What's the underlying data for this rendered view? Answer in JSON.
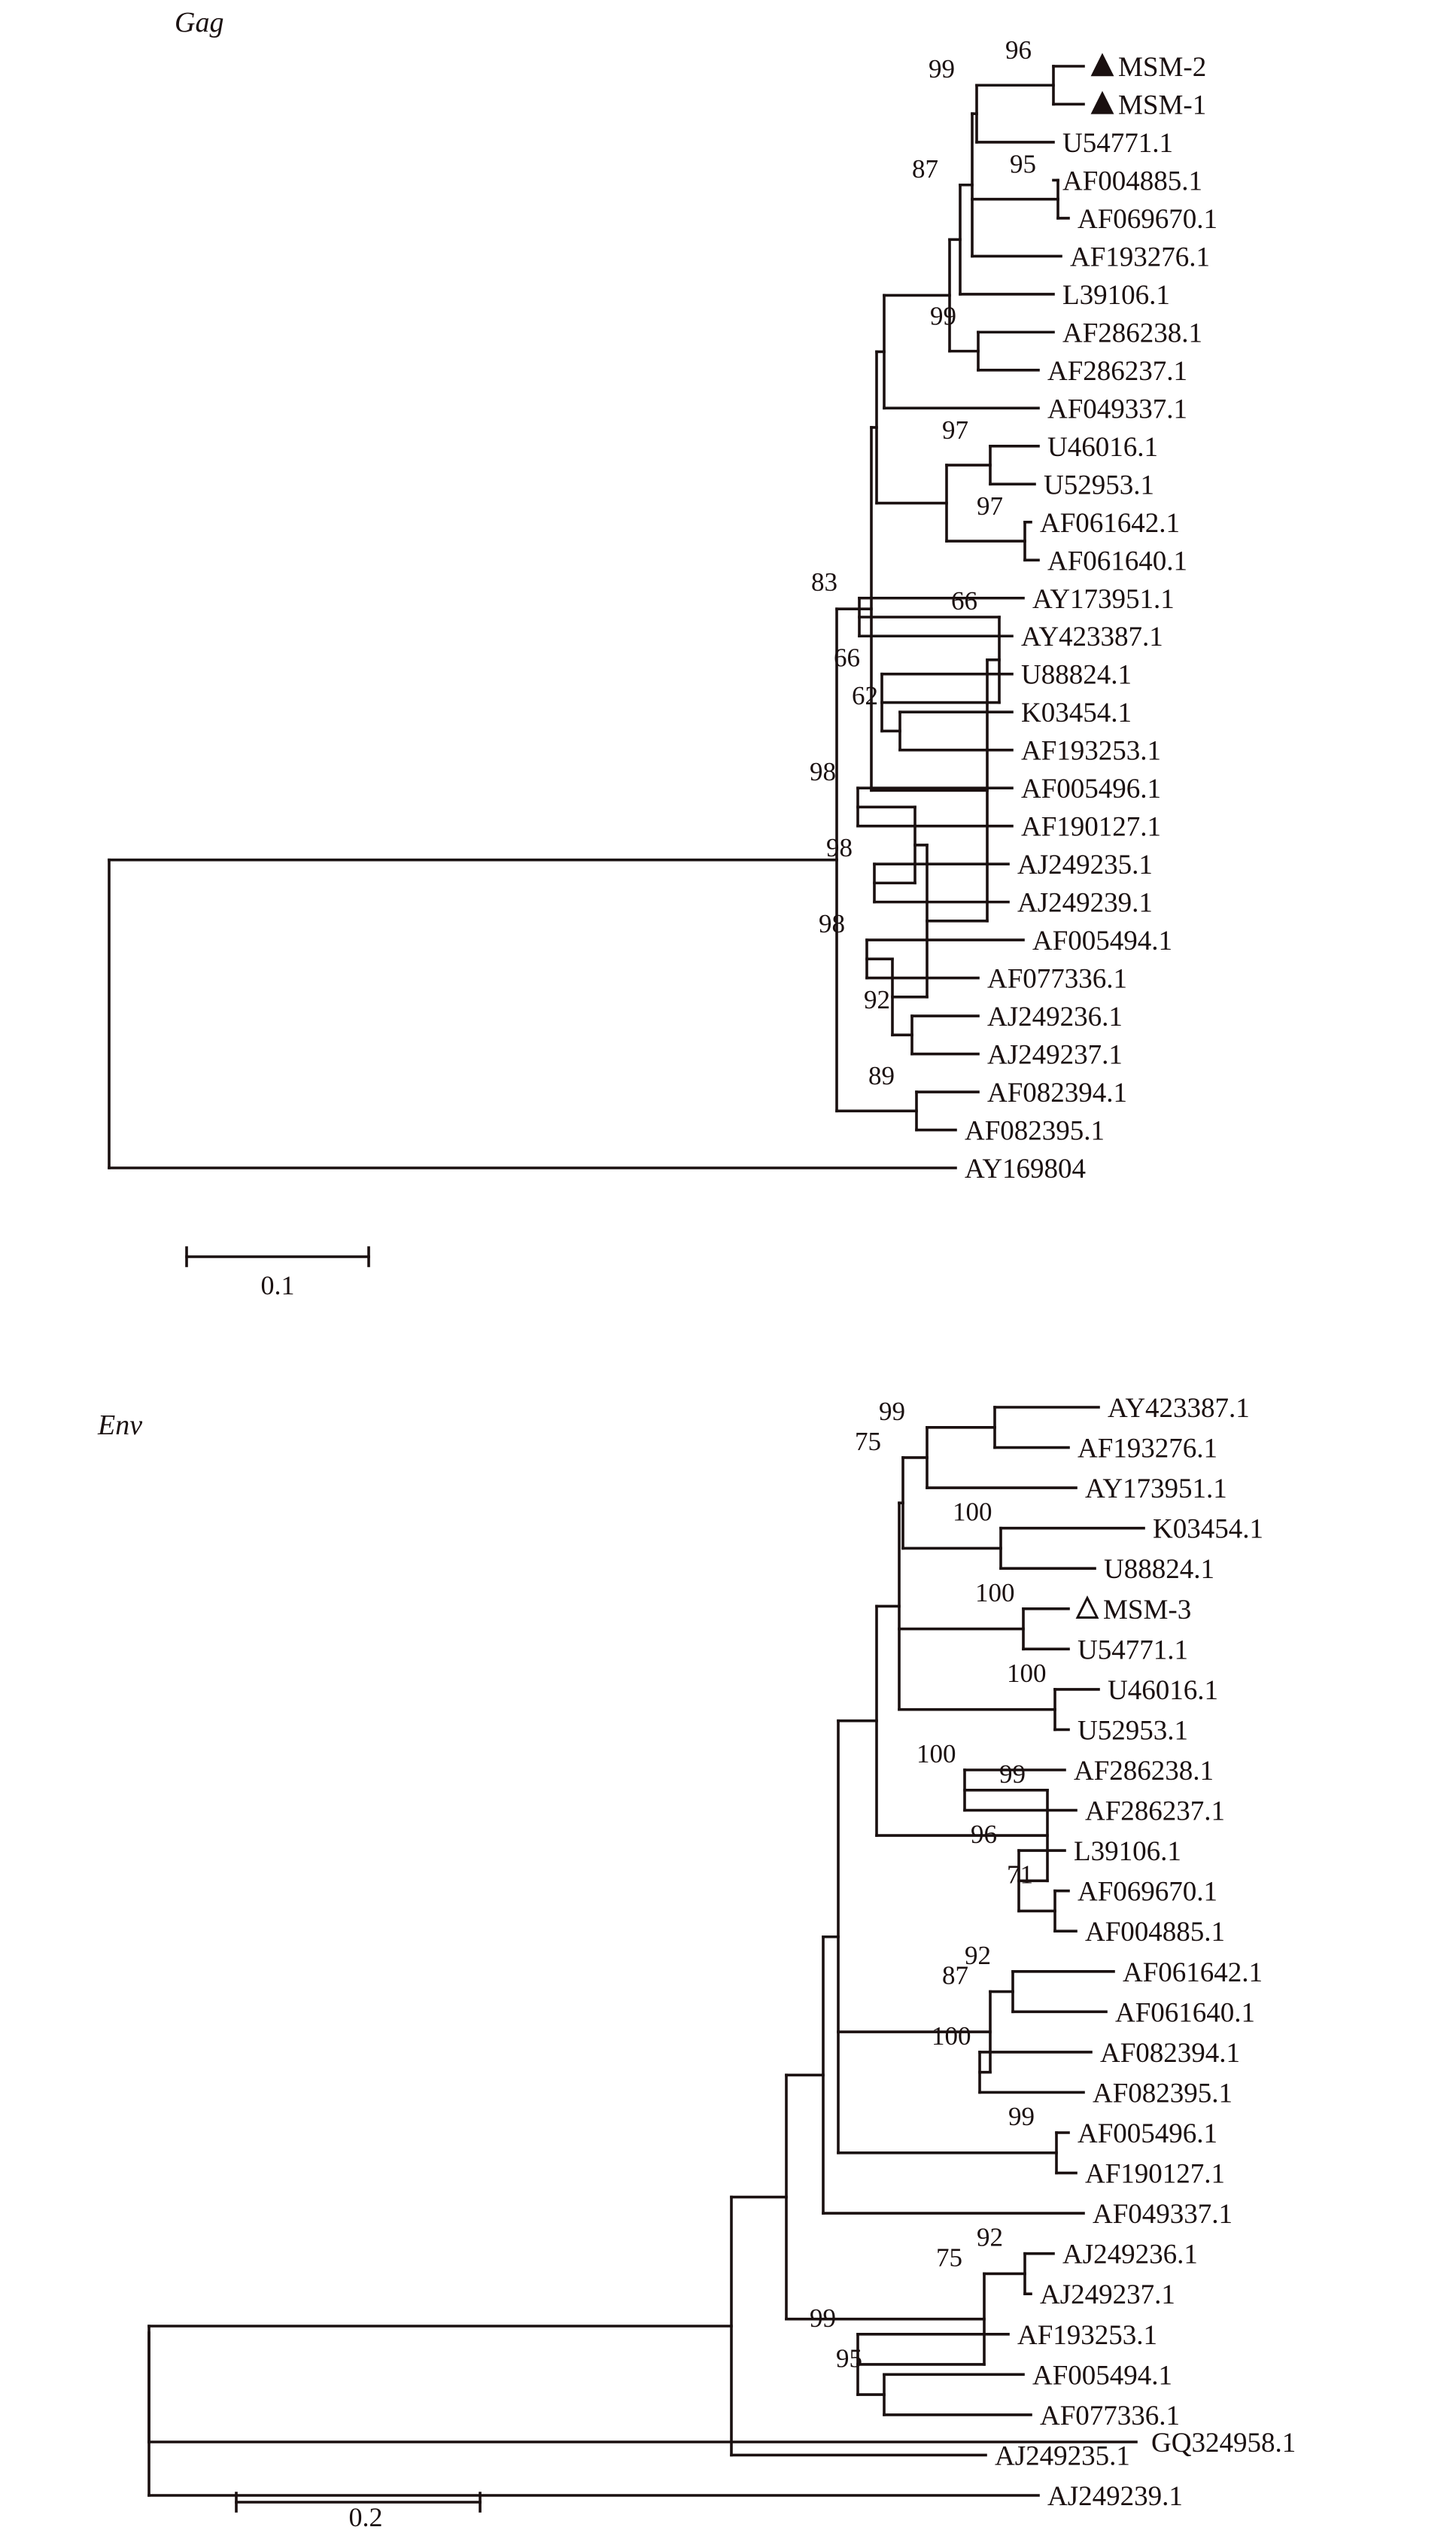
{
  "panels": [
    {
      "title": "Gag",
      "scale_bar": "0.1",
      "tree": {
        "c": [
          {
            "c": [
              {
                "c": [
                  {
                    "c": [
                      {
                        "c": [
                          {
                            "c": [
                              {
                                "c": [
                                  {
                                    "c": [
                                      {
                                        "c": [
                                          {
                                            "c": [
                                              {
                                                "leaf": "MSM-2",
                                                "marker": "filled-triangle"
                                              },
                                              {
                                                "leaf": "MSM-1",
                                                "marker": "filled-triangle"
                                              }
                                            ],
                                            "support": "96"
                                          },
                                          {
                                            "leaf": "U54771.1"
                                          }
                                        ],
                                        "support": "99"
                                      },
                                      {
                                        "c": [
                                          {
                                            "leaf": "AF004885.1"
                                          },
                                          {
                                            "leaf": "AF069670.1"
                                          }
                                        ],
                                        "support": "95"
                                      },
                                      {
                                        "leaf": "AF193276.1"
                                      }
                                    ]
                                  },
                                  {
                                    "leaf": "L39106.1"
                                  }
                                ],
                                "support": "87"
                              },
                              {
                                "c": [
                                  {
                                    "leaf": "AF286238.1"
                                  },
                                  {
                                    "leaf": "AF286237.1"
                                  }
                                ],
                                "support": "99"
                              }
                            ]
                          },
                          {
                            "leaf": "AF049337.1"
                          }
                        ]
                      },
                      {
                        "c": [
                          {
                            "c": [
                              {
                                "leaf": "U46016.1"
                              },
                              {
                                "leaf": "U52953.1"
                              }
                            ],
                            "support": "97"
                          },
                          {
                            "c": [
                              {
                                "leaf": "AF061642.1"
                              },
                              {
                                "leaf": "AF061640.1"
                              }
                            ],
                            "support": "97"
                          }
                        ]
                      }
                    ]
                  },
                  {
                    "c": [
                      {
                        "c": [
                          {
                            "c": [
                              {
                                "leaf": "AY173951.1"
                              },
                              {
                                "leaf": "AY423387.1"
                              }
                            ],
                            "support": "83"
                          },
                          {
                            "c": [
                              {
                                "leaf": "U88824.1"
                              },
                              {
                                "c": [
                                  {
                                    "leaf": "K03454.1"
                                  },
                                  {
                                    "leaf": "AF193253.1"
                                  }
                                ],
                                "support": "62"
                              }
                            ],
                            "support": "66"
                          }
                        ],
                        "support": "66"
                      },
                      {
                        "c": [
                          {
                            "c": [
                              {
                                "c": [
                                  {
                                    "leaf": "AF005496.1"
                                  },
                                  {
                                    "leaf": "AF190127.1"
                                  }
                                ],
                                "support": "98"
                              },
                              {
                                "c": [
                                  {
                                    "leaf": "AJ249235.1"
                                  },
                                  {
                                    "leaf": "AJ249239.1"
                                  }
                                ],
                                "support": "98"
                              }
                            ]
                          },
                          {
                            "c": [
                              {
                                "c": [
                                  {
                                    "leaf": "AF005494.1"
                                  },
                                  {
                                    "leaf": "AF077336.1"
                                  }
                                ],
                                "support": "98"
                              },
                              {
                                "c": [
                                  {
                                    "leaf": "AJ249236.1"
                                  },
                                  {
                                    "leaf": "AJ249237.1"
                                  }
                                ],
                                "support": "92"
                              }
                            ]
                          }
                        ]
                      }
                    ]
                  }
                ]
              },
              {
                "c": [
                  {
                    "leaf": "AF082394.1"
                  },
                  {
                    "leaf": "AF082395.1"
                  }
                ],
                "support": "89"
              }
            ]
          },
          {
            "leaf": "AY169804"
          }
        ]
      }
    },
    {
      "title": "Env",
      "scale_bar": "0.2",
      "tree": {
        "c": [
          {
            "c": [
              {
                "c": [
                  {
                    "c": [
                      {
                        "c": [
                          {
                            "c": [
                              {
                                "c": [
                                  {
                                    "c": [
                                      {
                                        "c": [
                                          {
                                            "c": [
                                              {
                                                "leaf": "AY423387.1"
                                              },
                                              {
                                                "leaf": "AF193276.1"
                                              }
                                            ]
                                          },
                                          {
                                            "leaf": "AY173951.1"
                                          }
                                        ],
                                        "support": "99"
                                      },
                                      {
                                        "c": [
                                          {
                                            "leaf": "K03454.1"
                                          },
                                          {
                                            "leaf": "U88824.1"
                                          }
                                        ],
                                        "support": "100"
                                      }
                                    ],
                                    "support": "75"
                                  },
                                  {
                                    "c": [
                                      {
                                        "leaf": "MSM-3",
                                        "marker": "open-triangle"
                                      },
                                      {
                                        "leaf": "U54771.1"
                                      }
                                    ],
                                    "support": "100"
                                  },
                                  {
                                    "c": [
                                      {
                                        "leaf": "U46016.1"
                                      },
                                      {
                                        "leaf": "U52953.1"
                                      }
                                    ],
                                    "support": "100"
                                  }
                                ]
                              },
                              {
                                "c": [
                                  {
                                    "c": [
                                      {
                                        "leaf": "AF286238.1"
                                      },
                                      {
                                        "leaf": "AF286237.1"
                                      }
                                    ],
                                    "support": "100"
                                  },
                                  {
                                    "c": [
                                      {
                                        "leaf": "L39106.1"
                                      },
                                      {
                                        "c": [
                                          {
                                            "leaf": "AF069670.1"
                                          },
                                          {
                                            "leaf": "AF004885.1"
                                          }
                                        ],
                                        "support": "71"
                                      }
                                    ],
                                    "support": "96"
                                  }
                                ],
                                "support": "99"
                              }
                            ]
                          },
                          {
                            "c": [
                              {
                                "c": [
                                  {
                                    "leaf": "AF061642.1"
                                  },
                                  {
                                    "leaf": "AF061640.1"
                                  }
                                ],
                                "support": "92"
                              },
                              {
                                "c": [
                                  {
                                    "leaf": "AF082394.1"
                                  },
                                  {
                                    "leaf": "AF082395.1"
                                  }
                                ],
                                "support": "100"
                              }
                            ],
                            "support": "87"
                          },
                          {
                            "c": [
                              {
                                "leaf": "AF005496.1"
                              },
                              {
                                "leaf": "AF190127.1"
                              }
                            ],
                            "support": "99"
                          }
                        ]
                      },
                      {
                        "leaf": "AF049337.1"
                      }
                    ]
                  },
                  {
                    "c": [
                      {
                        "c": [
                          {
                            "leaf": "AJ249236.1"
                          },
                          {
                            "leaf": "AJ249237.1"
                          }
                        ],
                        "support": "92"
                      },
                      {
                        "c": [
                          {
                            "leaf": "AF193253.1"
                          },
                          {
                            "c": [
                              {
                                "leaf": "AF005494.1"
                              },
                              {
                                "leaf": "AF077336.1"
                              }
                            ],
                            "support": "95"
                          }
                        ],
                        "support": "99"
                      }
                    ],
                    "support": "75"
                  }
                ]
              },
              {
                "leaf": "AJ249235.1"
              }
            ]
          },
          {
            "leaf": "AJ249239.1"
          }
        ]
      }
    },
    {
      "root_outgroup": "GQ324958.1"
    }
  ]
}
